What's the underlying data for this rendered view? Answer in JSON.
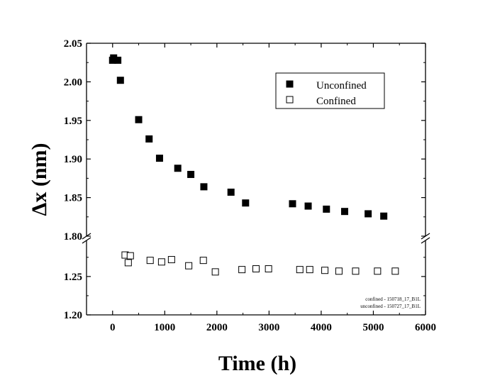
{
  "chart_data": {
    "type": "scatter",
    "xlabel": "Time (h)",
    "ylabel": "Δx (nm)",
    "xlim": [
      -500,
      6000
    ],
    "x_ticks": [
      0,
      1000,
      2000,
      3000,
      4000,
      5000,
      6000
    ],
    "x_tick_labels": [
      "0",
      "1000",
      "2000",
      "3000",
      "4000",
      "5000",
      "6000"
    ],
    "y_axis_break": true,
    "y_upper_range": [
      1.8,
      2.05
    ],
    "y_lower_range": [
      1.2,
      1.3
    ],
    "y_upper_ticks": [
      1.8,
      1.85,
      1.9,
      1.95,
      2.0,
      2.05
    ],
    "y_upper_tick_labels": [
      "1.80",
      "1.85",
      "1.90",
      "1.95",
      "2.00",
      "2.05"
    ],
    "y_lower_ticks": [
      1.2,
      1.25
    ],
    "y_lower_tick_labels": [
      "1.20",
      "1.25"
    ],
    "legend_position": "top-right",
    "series": [
      {
        "name": "Unconfined",
        "marker": "filled-square",
        "color": "#000000",
        "x": [
          0,
          20,
          100,
          150,
          500,
          700,
          900,
          1250,
          1500,
          1750,
          2270,
          2550,
          3450,
          3750,
          4100,
          4450,
          4900,
          5200
        ],
        "y": [
          2.028,
          2.031,
          2.028,
          2.002,
          1.951,
          1.926,
          1.901,
          1.888,
          1.88,
          1.864,
          1.857,
          1.843,
          1.842,
          1.839,
          1.835,
          1.832,
          1.829,
          1.826
        ]
      },
      {
        "name": "Confined",
        "marker": "hollow-square",
        "color": "#000000",
        "x": [
          240,
          300,
          340,
          720,
          940,
          1130,
          1460,
          1740,
          1970,
          2480,
          2750,
          2990,
          3590,
          3780,
          4070,
          4340,
          4660,
          5080,
          5420
        ],
        "y": [
          1.278,
          1.268,
          1.277,
          1.271,
          1.269,
          1.272,
          1.264,
          1.271,
          1.256,
          1.259,
          1.26,
          1.26,
          1.259,
          1.259,
          1.258,
          1.257,
          1.257,
          1.257,
          1.257
        ]
      }
    ],
    "annotation_lines": [
      "confined - 150718_17_B1L",
      "unconfined - 150727_17_B1L"
    ]
  }
}
